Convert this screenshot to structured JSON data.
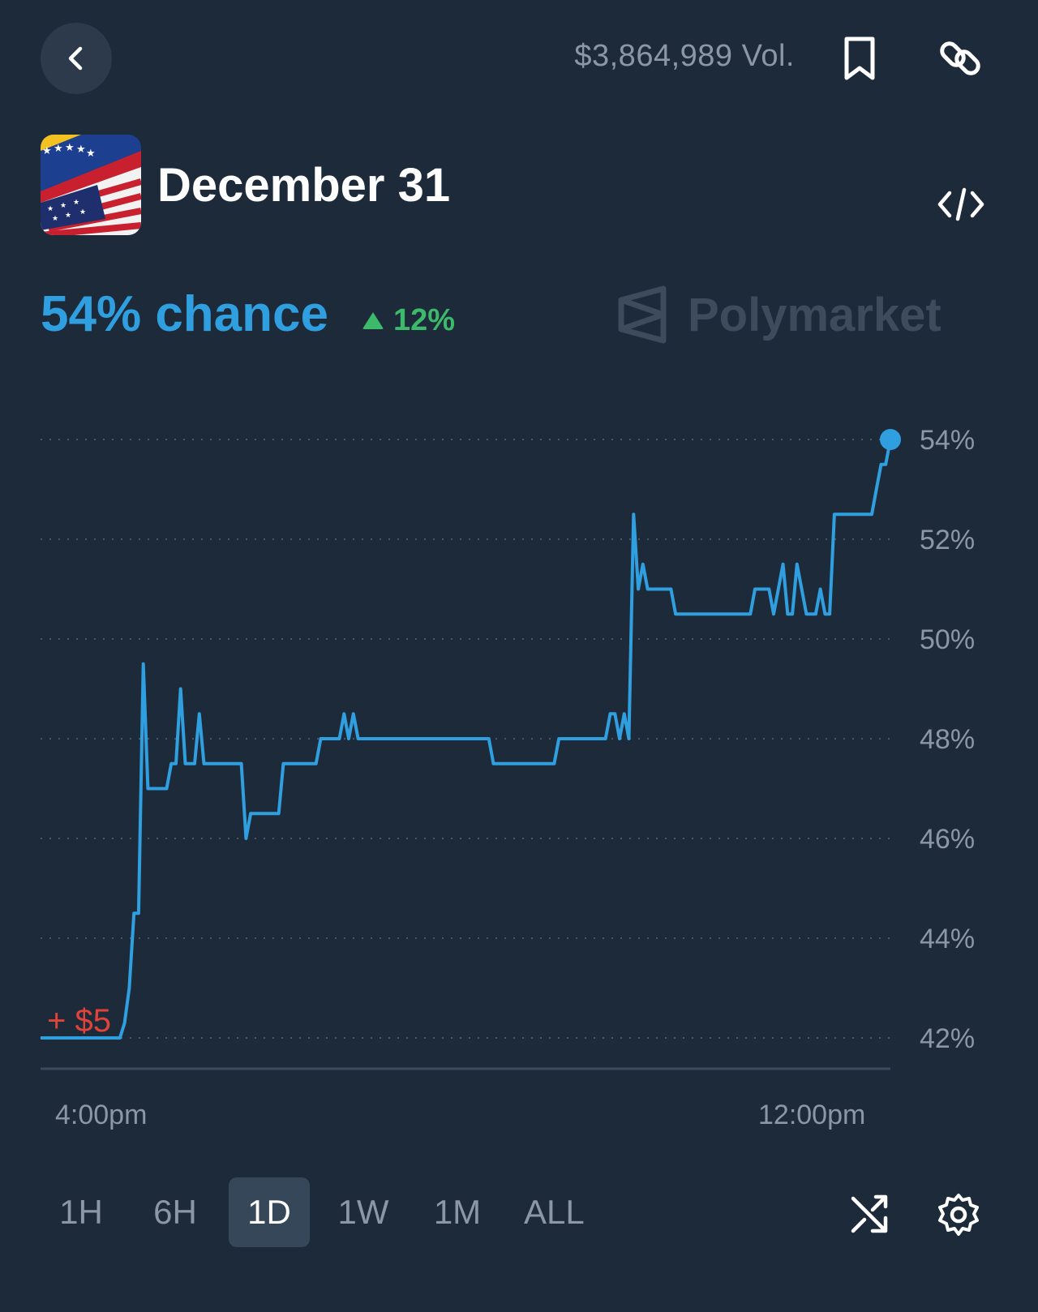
{
  "header": {
    "volume": "$3,864,989 Vol.",
    "icons": [
      "chevron-left-icon",
      "bookmark-icon",
      "link-icon",
      "code-icon"
    ]
  },
  "market": {
    "title": "December 31",
    "chance": "54% chance",
    "change": "12%",
    "brand": "Polymarket"
  },
  "trade_marker": "+ $5",
  "colors": {
    "line": "#2f9fe0",
    "up": "#3cb96a",
    "trade": "#e0433a",
    "background": "#1d2a3a"
  },
  "chart_data": {
    "type": "line",
    "x_labels": [
      "4:00pm",
      "12:00pm"
    ],
    "y_ticks": [
      "54%",
      "52%",
      "50%",
      "48%",
      "46%",
      "44%",
      "42%"
    ],
    "ylim": [
      42,
      54
    ],
    "grid": true,
    "series": [
      {
        "values": [
          42,
          42,
          42,
          42,
          42,
          42,
          42,
          42,
          42,
          42,
          42,
          42,
          42,
          42,
          42,
          42,
          42,
          42,
          42.3,
          43,
          44.5,
          44.5,
          49.5,
          47,
          47,
          47,
          47,
          47,
          47.5,
          47.5,
          49,
          47.5,
          47.5,
          47.5,
          48.5,
          47.5,
          47.5,
          47.5,
          47.5,
          47.5,
          47.5,
          47.5,
          47.5,
          47.5,
          46,
          46.5,
          46.5,
          46.5,
          46.5,
          46.5,
          46.5,
          46.5,
          47.5,
          47.5,
          47.5,
          47.5,
          47.5,
          47.5,
          47.5,
          47.5,
          48,
          48,
          48,
          48,
          48,
          48.5,
          48,
          48.5,
          48,
          48,
          48,
          48,
          48,
          48,
          48,
          48,
          48,
          48,
          48,
          48,
          48,
          48,
          48,
          48,
          48,
          48,
          48,
          48,
          48,
          48,
          48,
          48,
          48,
          48,
          48,
          48,
          48,
          47.5,
          47.5,
          47.5,
          47.5,
          47.5,
          47.5,
          47.5,
          47.5,
          47.5,
          47.5,
          47.5,
          47.5,
          47.5,
          47.5,
          48,
          48,
          48,
          48,
          48,
          48,
          48,
          48,
          48,
          48,
          48,
          48.5,
          48.5,
          48,
          48.5,
          48,
          52.5,
          51,
          51.5,
          51,
          51,
          51,
          51,
          51,
          51,
          50.5,
          50.5,
          50.5,
          50.5,
          50.5,
          50.5,
          50.5,
          50.5,
          50.5,
          50.5,
          50.5,
          50.5,
          50.5,
          50.5,
          50.5,
          50.5,
          50.5,
          51,
          51,
          51,
          51,
          50.5,
          51,
          51.5,
          50.5,
          50.5,
          51.5,
          51,
          50.5,
          50.5,
          50.5,
          51,
          50.5,
          50.5,
          52.5,
          52.5,
          52.5,
          52.5,
          52.5,
          52.5,
          52.5,
          52.5,
          52.5,
          53,
          53.5,
          53.5,
          54
        ]
      }
    ]
  },
  "timeframes": [
    "1H",
    "6H",
    "1D",
    "1W",
    "1M",
    "ALL"
  ],
  "active_timeframe": "1D",
  "footer_icons": [
    "shuffle-icon",
    "settings-icon"
  ]
}
